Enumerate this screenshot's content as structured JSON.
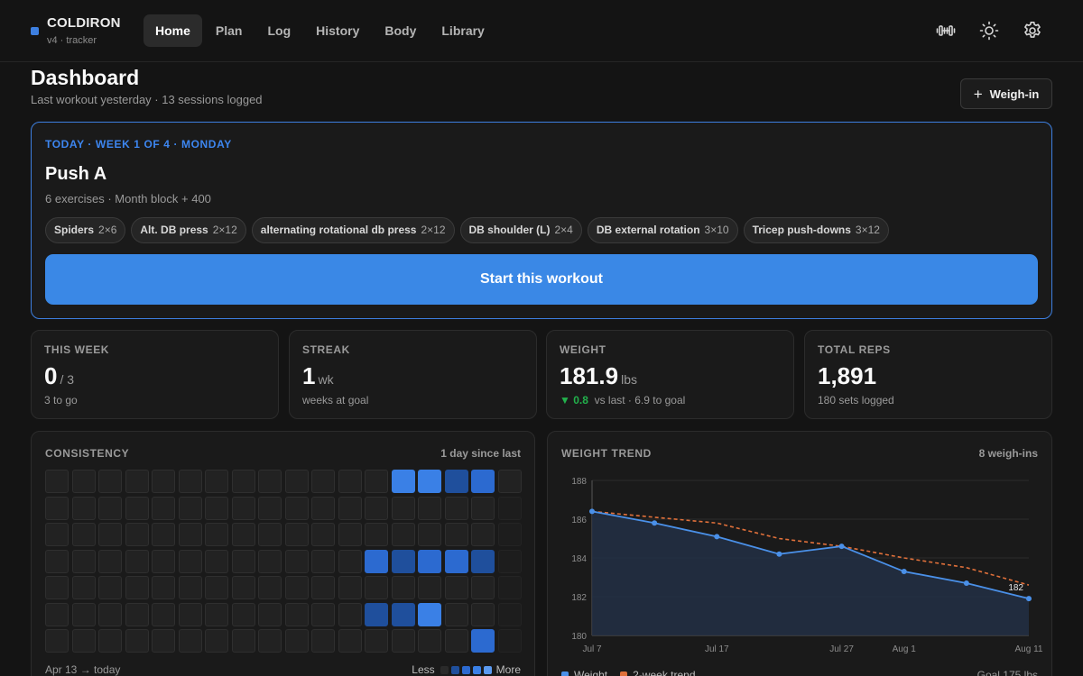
{
  "brand": {
    "name": "COLDIRON",
    "sub": "v4 · tracker",
    "accent": "#3d7fe0"
  },
  "nav": [
    {
      "label": "Home",
      "active": true
    },
    {
      "label": "Plan"
    },
    {
      "label": "Log"
    },
    {
      "label": "History"
    },
    {
      "label": "Body"
    },
    {
      "label": "Library"
    }
  ],
  "header_icons": [
    "dumbbell-icon",
    "sun-icon",
    "gear-icon"
  ],
  "page": {
    "title": "Dashboard",
    "subtitle": "Last workout yesterday · 13 sessions logged",
    "weigh_in_label": "Weigh-in"
  },
  "today": {
    "label": "TODAY · WEEK 1 OF 4 · MONDAY",
    "title": "Push A",
    "subtitle": "6 exercises · Month block + 400",
    "exercises": [
      {
        "name": "Spiders",
        "sets": "2×6"
      },
      {
        "name": "Alt. DB press",
        "sets": "2×12"
      },
      {
        "name": "alternating rotational db press",
        "sets": "2×12"
      },
      {
        "name": "DB shoulder (L)",
        "sets": "2×4"
      },
      {
        "name": "DB external rotation",
        "sets": "3×10"
      },
      {
        "name": "Tricep push-downs",
        "sets": "3×12"
      }
    ],
    "start_label": "Start this workout"
  },
  "stats": [
    {
      "label": "THIS WEEK",
      "value": "0",
      "unit": "/ 3",
      "sub": "3 to go"
    },
    {
      "label": "STREAK",
      "value": "1",
      "unit": "wk",
      "sub": "weeks at goal"
    },
    {
      "label": "WEIGHT",
      "value": "181.9",
      "unit": "lbs",
      "delta": "▼ 0.8",
      "sub": "vs last · 6.9 to goal"
    },
    {
      "label": "TOTAL REPS",
      "value": "1,891",
      "unit": "",
      "sub": "180 sets logged"
    }
  ],
  "consistency": {
    "label": "CONSISTENCY",
    "right": "1 day since last",
    "range": "Apr 13 → today",
    "less": "Less",
    "more": "More",
    "colors": [
      "#2a2a2a",
      "#1f4f9c",
      "#2c6ad0",
      "#3a80e6",
      "#5b9af0"
    ],
    "cells": [
      [
        0,
        0,
        0,
        0,
        0,
        0,
        0,
        0,
        0,
        0,
        0,
        0,
        0,
        3,
        3,
        1,
        2,
        0
      ],
      [
        0,
        0,
        0,
        0,
        0,
        0,
        0,
        0,
        0,
        0,
        0,
        0,
        0,
        0,
        0,
        0,
        0,
        -1
      ],
      [
        0,
        0,
        0,
        0,
        0,
        0,
        0,
        0,
        0,
        0,
        0,
        0,
        0,
        0,
        0,
        0,
        0,
        -1
      ],
      [
        0,
        0,
        0,
        0,
        0,
        0,
        0,
        0,
        0,
        0,
        0,
        0,
        2,
        1,
        2,
        2,
        1,
        -1
      ],
      [
        0,
        0,
        0,
        0,
        0,
        0,
        0,
        0,
        0,
        0,
        0,
        0,
        0,
        0,
        0,
        0,
        0,
        -1
      ],
      [
        0,
        0,
        0,
        0,
        0,
        0,
        0,
        0,
        0,
        0,
        0,
        0,
        1,
        1,
        3,
        0,
        0,
        -1
      ],
      [
        0,
        0,
        0,
        0,
        0,
        0,
        0,
        0,
        0,
        0,
        0,
        0,
        0,
        0,
        0,
        0,
        2,
        -1
      ]
    ]
  },
  "trend": {
    "label": "WEIGHT TREND",
    "right": "8 weigh-ins",
    "legend_weight": "Weight",
    "legend_trend": "2-week trend",
    "goal": "Goal 175 lbs",
    "last_label": "182"
  },
  "chart_data": {
    "type": "line",
    "x_ticks": [
      "Jul 7",
      "Jul 17",
      "Jul 27",
      "Aug 1",
      "Aug 11"
    ],
    "x_tick_days": [
      0,
      10,
      20,
      25,
      35
    ],
    "ylim": [
      180,
      188
    ],
    "y_ticks": [
      180,
      182,
      184,
      186,
      188
    ],
    "grid": true,
    "series": [
      {
        "name": "Weight",
        "color": "#4a90e8",
        "x": [
          0,
          5,
          10,
          15,
          20,
          25,
          30,
          35
        ],
        "values": [
          186.4,
          185.8,
          185.1,
          184.2,
          184.6,
          183.3,
          182.7,
          181.9
        ]
      },
      {
        "name": "2-week trend",
        "color": "#e0703a",
        "x": [
          0,
          5,
          10,
          15,
          20,
          25,
          30,
          35
        ],
        "values": [
          186.4,
          186.1,
          185.8,
          185.0,
          184.6,
          184.0,
          183.5,
          182.6
        ]
      }
    ]
  }
}
